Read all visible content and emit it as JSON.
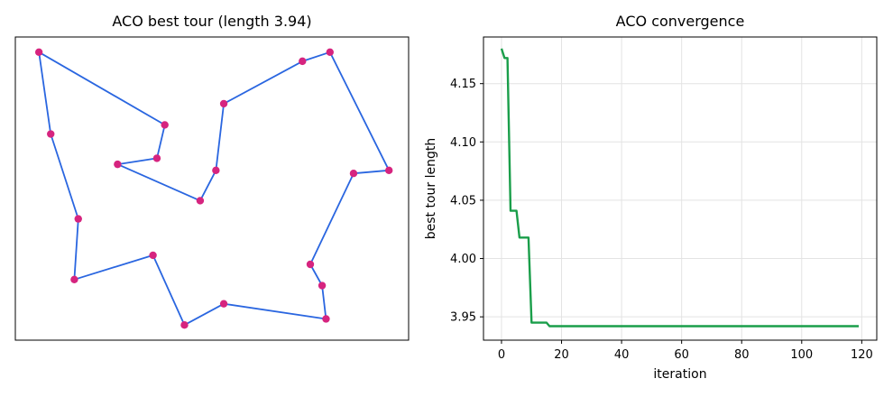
{
  "chart_data": [
    {
      "type": "scatter",
      "title": "ACO best tour (length 3.94)",
      "axes_visible": false,
      "xlim": [
        0,
        1
      ],
      "ylim": [
        0,
        1
      ],
      "line_color": "#2a66e0",
      "marker_color": "#d6247f",
      "tour_points": [
        [
          0.06,
          0.95
        ],
        [
          0.38,
          0.71
        ],
        [
          0.36,
          0.6
        ],
        [
          0.26,
          0.58
        ],
        [
          0.47,
          0.46
        ],
        [
          0.51,
          0.56
        ],
        [
          0.53,
          0.78
        ],
        [
          0.73,
          0.92
        ],
        [
          0.8,
          0.95
        ],
        [
          0.95,
          0.56
        ],
        [
          0.86,
          0.55
        ],
        [
          0.75,
          0.25
        ],
        [
          0.78,
          0.18
        ],
        [
          0.79,
          0.07
        ],
        [
          0.53,
          0.12
        ],
        [
          0.43,
          0.05
        ],
        [
          0.35,
          0.28
        ],
        [
          0.15,
          0.2
        ],
        [
          0.16,
          0.4
        ],
        [
          0.09,
          0.68
        ]
      ]
    },
    {
      "type": "line",
      "title": "ACO convergence",
      "xlabel": "iteration",
      "ylabel": "best tour length",
      "xlim": [
        -6,
        125
      ],
      "ylim": [
        3.93,
        4.19
      ],
      "xticks": [
        0,
        20,
        40,
        60,
        80,
        100,
        120
      ],
      "yticks": [
        3.95,
        4.0,
        4.05,
        4.1,
        4.15
      ],
      "ytick_labels": [
        "3.95",
        "4.00",
        "4.05",
        "4.10",
        "4.15"
      ],
      "grid": true,
      "line_color": "#1a9e4a",
      "x": [
        0,
        1,
        2,
        3,
        4,
        5,
        6,
        7,
        8,
        9,
        10,
        11,
        12,
        13,
        14,
        15,
        16,
        17,
        18,
        19,
        20,
        30,
        40,
        50,
        60,
        70,
        80,
        90,
        100,
        110,
        119
      ],
      "y": [
        4.18,
        4.172,
        4.172,
        4.041,
        4.041,
        4.041,
        4.018,
        4.018,
        4.018,
        4.018,
        3.945,
        3.945,
        3.945,
        3.945,
        3.945,
        3.945,
        3.942,
        3.942,
        3.942,
        3.942,
        3.942,
        3.942,
        3.942,
        3.942,
        3.942,
        3.942,
        3.942,
        3.942,
        3.942,
        3.942,
        3.942
      ]
    }
  ]
}
